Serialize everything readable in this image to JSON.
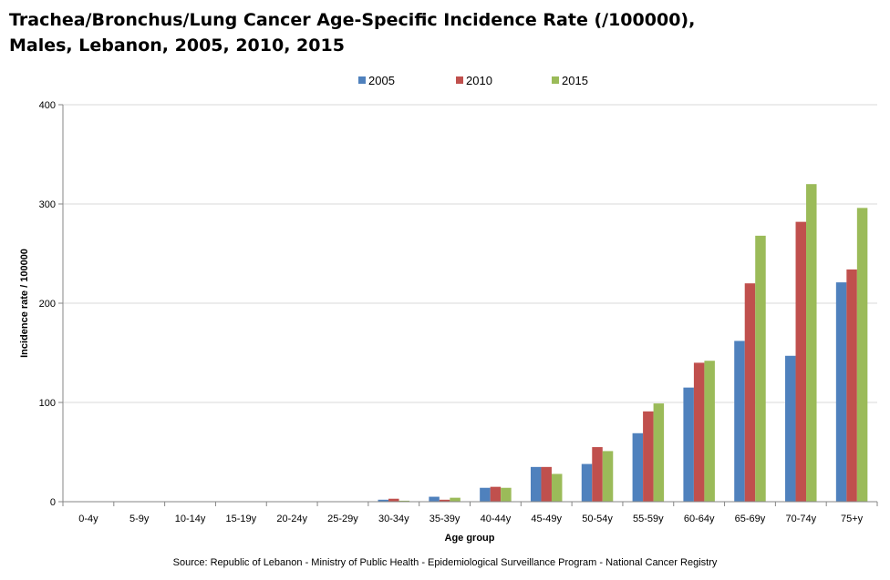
{
  "chart_data": {
    "type": "bar",
    "title_line1": "Trachea/Bronchus/Lung  Cancer Age-Specific Incidence Rate (/100000),",
    "title_line2": "Males, Lebanon, 2005, 2010, 2015",
    "xlabel": "Age group",
    "ylabel": "Incidence  rate / 100000",
    "ylim": [
      0,
      400
    ],
    "yticks": [
      0,
      100,
      200,
      300,
      400
    ],
    "grid": true,
    "legend_position": "top-center",
    "categories": [
      "0-4y",
      "5-9y",
      "10-14y",
      "15-19y",
      "20-24y",
      "25-29y",
      "30-34y",
      "35-39y",
      "40-44y",
      "45-49y",
      "50-54y",
      "55-59y",
      "60-64y",
      "65-69y",
      "70-74y",
      "75+y"
    ],
    "series": [
      {
        "name": "2005",
        "color": "#4F81BD",
        "values": [
          0,
          0,
          0,
          0,
          0,
          0,
          2,
          5,
          14,
          35,
          38,
          69,
          115,
          162,
          147,
          221
        ]
      },
      {
        "name": "2010",
        "color": "#C0504D",
        "values": [
          0,
          0,
          0,
          0,
          0,
          0,
          3,
          2,
          15,
          35,
          55,
          91,
          140,
          220,
          282,
          234
        ]
      },
      {
        "name": "2015",
        "color": "#9BBB59",
        "values": [
          0,
          0,
          0,
          0,
          0,
          0,
          1,
          4,
          14,
          28,
          51,
          99,
          142,
          268,
          320,
          296
        ]
      }
    ],
    "source": "Source: Republic of Lebanon - Ministry of Public Health - Epidemiological Surveillance Program - National Cancer Registry"
  }
}
